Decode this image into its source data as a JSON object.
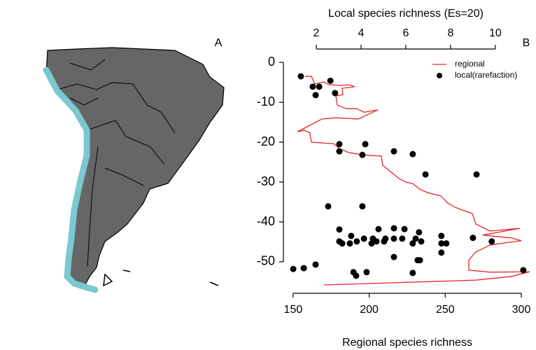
{
  "chart_data": {
    "type": "scatter-line",
    "panel_labels": [
      "A",
      "B"
    ],
    "xlabel": "Regional species richness",
    "x2label": "Local species richness (Es=20)",
    "xlim": [
      143.6,
      306.9
    ],
    "xticks": [
      150,
      200,
      250,
      300
    ],
    "x2lim": [
      0.53,
      11.63
    ],
    "x2ticks": [
      2,
      4,
      6,
      8,
      10
    ],
    "ylim": [
      1.6,
      -57.2
    ],
    "yticks": [
      0,
      -10,
      -20,
      -30,
      -40,
      -50
    ],
    "legend": "top-right",
    "series": [
      {
        "name": "regional",
        "color": "#e8272a",
        "mark": "line",
        "axis": "x",
        "x": [
          157.8,
          162.0,
          164.3,
          170.2,
          173.5,
          181.8,
          187.3,
          190.0,
          182.2,
          182.7,
          178.1,
          179.0,
          185.0,
          191.9,
          196.5,
          205.7,
          192.8,
          178.1,
          168.9,
          162.0,
          152.8,
          157.4,
          161.0,
          162.0,
          176.7,
          180.4,
          186.4,
          196.5,
          208.0,
          208.9,
          219.5,
          224.1,
          228.7,
          233.3,
          237.9,
          247.1,
          251.7,
          256.3,
          260.9,
          267.8,
          270.1,
          279.3,
          299.1,
          274.7,
          293.1,
          300.0,
          279.3,
          274.7,
          270.1,
          265.5,
          265.5,
          279.3,
          305.5,
          293.1,
          270.1,
          170.2
        ],
        "values": [
          -3.5,
          -3.5,
          -5.4,
          -4.9,
          -5.6,
          -5.8,
          -5.6,
          -6.1,
          -6.5,
          -8.1,
          -8.4,
          -10.7,
          -11.6,
          -11.6,
          -12.5,
          -11.9,
          -14.2,
          -13.9,
          -14.2,
          -15.6,
          -17.4,
          -17.0,
          -17.7,
          -20.0,
          -20.4,
          -21.6,
          -22.6,
          -23.2,
          -23.5,
          -25.8,
          -29.1,
          -30.0,
          -30.4,
          -31.8,
          -32.6,
          -33.5,
          -35.3,
          -36.3,
          -37.0,
          -37.9,
          -40.5,
          -42.3,
          -41.6,
          -43.3,
          -44.0,
          -44.7,
          -45.8,
          -46.7,
          -47.5,
          -49.6,
          -52.1,
          -52.6,
          -52.5,
          -53.7,
          -54.6,
          -55.8
        ]
      },
      {
        "name": "local(rarefaction)",
        "color": "#000000",
        "mark": "dot",
        "axis": "x2",
        "x": [
          1.31,
          2.63,
          1.84,
          2.13,
          2.84,
          1.97,
          3.03,
          4.19,
          3.03,
          5.47,
          4.06,
          6.31,
          6.88,
          9.16,
          2.53,
          4.06,
          3.03,
          4.78,
          5.47,
          5.94,
          6.59,
          3.56,
          4.13,
          4.53,
          5.09,
          5.47,
          5.84,
          6.44,
          7.59,
          9.0,
          3.03,
          3.16,
          3.81,
          4.69,
          5.03,
          6.31,
          6.69,
          7.59,
          7.81,
          9.84,
          3.5,
          4.47,
          7.59,
          5.47,
          6.53,
          6.63,
          1.97,
          1.44,
          0.97,
          3.66,
          4.25,
          6.31,
          11.25,
          3.78
        ],
        "values": [
          -3.5,
          -4.6,
          -6.1,
          -6.1,
          -7.7,
          -8.2,
          -20.5,
          -20.5,
          -22.3,
          -22.3,
          -23.2,
          -23.0,
          -28.1,
          -28.1,
          -36.1,
          -36.1,
          -41.9,
          -41.8,
          -41.6,
          -41.8,
          -42.6,
          -43.5,
          -44.2,
          -44.2,
          -44.2,
          -44.2,
          -44.2,
          -44.2,
          -43.5,
          -44.0,
          -44.9,
          -45.4,
          -44.9,
          -44.9,
          -44.9,
          -45.4,
          -44.9,
          -45.4,
          -45.4,
          -44.9,
          -45.4,
          -45.4,
          -47.7,
          -48.8,
          -49.6,
          -49.6,
          -50.7,
          -51.6,
          -51.8,
          -52.6,
          -52.6,
          -52.8,
          -52.1,
          -53.5
        ]
      }
    ]
  }
}
